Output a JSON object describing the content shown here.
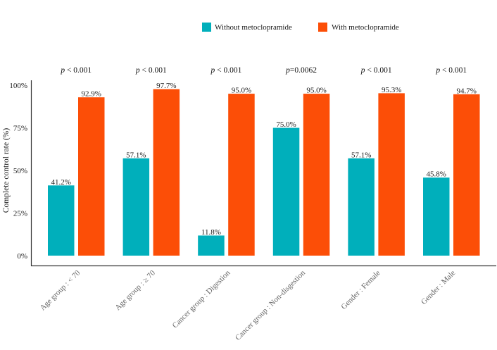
{
  "chart_data": {
    "type": "bar",
    "title": "",
    "xlabel": "",
    "ylabel": "Complete control rate  (%)",
    "ylim": [
      0,
      100
    ],
    "yticks": [
      "0%",
      "25%",
      "50%",
      "75%",
      "100%"
    ],
    "ytick_values": [
      0,
      25,
      50,
      75,
      100
    ],
    "grid": false,
    "legend_position": "top",
    "categories": [
      "Age group : < 70",
      "Age group : ≥ 70",
      "Cancer group : Digestion",
      "Cancer group : Non-disgestion",
      "Gender : Female",
      "Gender : Male"
    ],
    "series": [
      {
        "name": "Without metoclopramide",
        "color": "#00AFBB",
        "values": [
          41.2,
          57.1,
          11.8,
          75.0,
          57.1,
          45.8
        ],
        "labels": [
          "41.2%",
          "57.1%",
          "11.8%",
          "75.0%",
          "57.1%",
          "45.8%"
        ]
      },
      {
        "name": "With metoclopramide",
        "color": "#FC4E07",
        "values": [
          92.9,
          97.7,
          95.0,
          95.0,
          95.3,
          94.7
        ],
        "labels": [
          "92.9%",
          "97.7%",
          "95.0%",
          "95.0%",
          "95.3%",
          "94.7%"
        ]
      }
    ],
    "annotations": [
      {
        "p": "p",
        "op": "<",
        "value": "0.001"
      },
      {
        "p": "p",
        "op": "<",
        "value": "0.001"
      },
      {
        "p": "p",
        "op": "<",
        "value": "0.001"
      },
      {
        "p": "p",
        "op": "=",
        "value": "0.0062"
      },
      {
        "p": "p",
        "op": "<",
        "value": "0.001"
      },
      {
        "p": "p",
        "op": "<",
        "value": "0.001"
      }
    ]
  }
}
